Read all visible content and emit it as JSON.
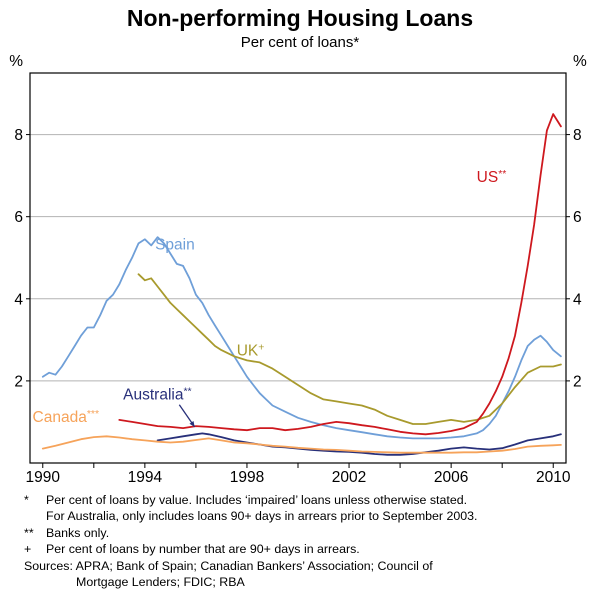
{
  "chart_data": {
    "type": "line",
    "title": "Non-performing Housing Loans",
    "subtitle": "Per cent of loans*",
    "xlim": [
      1989.5,
      2010.5
    ],
    "ylim": [
      0,
      9.5
    ],
    "x_axis": {
      "labels": [
        1990,
        1994,
        1998,
        2002,
        2006,
        2010
      ],
      "minor_ticks": [
        1990,
        1992,
        1994,
        1996,
        1998,
        2000,
        2002,
        2004,
        2006,
        2008,
        2010
      ]
    },
    "y_axis": {
      "ticks": [
        2,
        4,
        6,
        8
      ],
      "unit": "%",
      "gridlines": true
    },
    "colors": {
      "grid": "#b3b3b3",
      "frame": "#000000"
    },
    "legend_position": "inline-labels",
    "series": [
      {
        "id": "spain",
        "name": "Spain",
        "color": "#6f9fd8",
        "points": [
          [
            1990,
            2.1
          ],
          [
            1990.25,
            2.2
          ],
          [
            1990.5,
            2.15
          ],
          [
            1990.75,
            2.35
          ],
          [
            1991,
            2.6
          ],
          [
            1991.25,
            2.85
          ],
          [
            1991.5,
            3.1
          ],
          [
            1991.75,
            3.3
          ],
          [
            1992,
            3.3
          ],
          [
            1992.25,
            3.6
          ],
          [
            1992.5,
            3.95
          ],
          [
            1992.75,
            4.1
          ],
          [
            1993,
            4.35
          ],
          [
            1993.25,
            4.7
          ],
          [
            1993.5,
            5.0
          ],
          [
            1993.75,
            5.35
          ],
          [
            1994,
            5.45
          ],
          [
            1994.25,
            5.3
          ],
          [
            1994.5,
            5.5
          ],
          [
            1994.75,
            5.35
          ],
          [
            1995,
            5.1
          ],
          [
            1995.25,
            4.85
          ],
          [
            1995.5,
            4.8
          ],
          [
            1995.75,
            4.5
          ],
          [
            1996,
            4.1
          ],
          [
            1996.25,
            3.9
          ],
          [
            1996.5,
            3.6
          ],
          [
            1996.75,
            3.35
          ],
          [
            1997,
            3.1
          ],
          [
            1997.25,
            2.85
          ],
          [
            1997.5,
            2.6
          ],
          [
            1997.75,
            2.35
          ],
          [
            1998,
            2.1
          ],
          [
            1998.25,
            1.9
          ],
          [
            1998.5,
            1.7
          ],
          [
            1998.75,
            1.55
          ],
          [
            1999,
            1.4
          ],
          [
            1999.5,
            1.25
          ],
          [
            2000,
            1.1
          ],
          [
            2000.5,
            1.0
          ],
          [
            2001,
            0.92
          ],
          [
            2001.5,
            0.85
          ],
          [
            2002,
            0.8
          ],
          [
            2002.5,
            0.75
          ],
          [
            2003,
            0.7
          ],
          [
            2003.5,
            0.65
          ],
          [
            2004,
            0.62
          ],
          [
            2004.5,
            0.6
          ],
          [
            2005,
            0.6
          ],
          [
            2005.5,
            0.6
          ],
          [
            2006,
            0.62
          ],
          [
            2006.5,
            0.65
          ],
          [
            2007,
            0.72
          ],
          [
            2007.25,
            0.8
          ],
          [
            2007.5,
            0.95
          ],
          [
            2007.75,
            1.15
          ],
          [
            2008,
            1.45
          ],
          [
            2008.25,
            1.75
          ],
          [
            2008.5,
            2.1
          ],
          [
            2008.75,
            2.5
          ],
          [
            2009,
            2.85
          ],
          [
            2009.25,
            3.0
          ],
          [
            2009.5,
            3.1
          ],
          [
            2009.75,
            2.95
          ],
          [
            2010,
            2.75
          ],
          [
            2010.3,
            2.6
          ]
        ]
      },
      {
        "id": "uk",
        "name": "UK+",
        "color": "#a89a2d",
        "points": [
          [
            1993.75,
            4.6
          ],
          [
            1994,
            4.45
          ],
          [
            1994.25,
            4.5
          ],
          [
            1994.5,
            4.3
          ],
          [
            1994.75,
            4.1
          ],
          [
            1995,
            3.9
          ],
          [
            1995.25,
            3.75
          ],
          [
            1995.5,
            3.6
          ],
          [
            1995.75,
            3.45
          ],
          [
            1996,
            3.3
          ],
          [
            1996.25,
            3.15
          ],
          [
            1996.5,
            3.0
          ],
          [
            1996.75,
            2.85
          ],
          [
            1997,
            2.75
          ],
          [
            1997.5,
            2.6
          ],
          [
            1998,
            2.5
          ],
          [
            1998.5,
            2.45
          ],
          [
            1999,
            2.3
          ],
          [
            1999.5,
            2.1
          ],
          [
            2000,
            1.9
          ],
          [
            2000.5,
            1.7
          ],
          [
            2001,
            1.55
          ],
          [
            2001.5,
            1.5
          ],
          [
            2002,
            1.45
          ],
          [
            2002.5,
            1.4
          ],
          [
            2003,
            1.3
          ],
          [
            2003.5,
            1.15
          ],
          [
            2004,
            1.05
          ],
          [
            2004.5,
            0.95
          ],
          [
            2005,
            0.95
          ],
          [
            2005.5,
            1.0
          ],
          [
            2006,
            1.05
          ],
          [
            2006.5,
            1.0
          ],
          [
            2007,
            1.05
          ],
          [
            2007.5,
            1.15
          ],
          [
            2008,
            1.45
          ],
          [
            2008.5,
            1.85
          ],
          [
            2009,
            2.2
          ],
          [
            2009.5,
            2.35
          ],
          [
            2010,
            2.35
          ],
          [
            2010.3,
            2.4
          ]
        ]
      },
      {
        "id": "us",
        "name": "US**",
        "color": "#ce181e",
        "points": [
          [
            1993,
            1.05
          ],
          [
            1993.5,
            1.0
          ],
          [
            1994,
            0.95
          ],
          [
            1994.5,
            0.9
          ],
          [
            1995,
            0.88
          ],
          [
            1995.5,
            0.85
          ],
          [
            1996,
            0.9
          ],
          [
            1996.5,
            0.88
          ],
          [
            1997,
            0.85
          ],
          [
            1997.5,
            0.82
          ],
          [
            1998,
            0.8
          ],
          [
            1998.5,
            0.85
          ],
          [
            1999,
            0.85
          ],
          [
            1999.5,
            0.8
          ],
          [
            2000,
            0.83
          ],
          [
            2000.5,
            0.88
          ],
          [
            2001,
            0.95
          ],
          [
            2001.5,
            1.0
          ],
          [
            2002,
            0.97
          ],
          [
            2002.5,
            0.92
          ],
          [
            2003,
            0.88
          ],
          [
            2003.5,
            0.82
          ],
          [
            2004,
            0.76
          ],
          [
            2004.5,
            0.72
          ],
          [
            2005,
            0.7
          ],
          [
            2005.5,
            0.73
          ],
          [
            2006,
            0.78
          ],
          [
            2006.5,
            0.85
          ],
          [
            2007,
            1.0
          ],
          [
            2007.25,
            1.2
          ],
          [
            2007.5,
            1.45
          ],
          [
            2007.75,
            1.75
          ],
          [
            2008,
            2.1
          ],
          [
            2008.25,
            2.55
          ],
          [
            2008.5,
            3.1
          ],
          [
            2008.75,
            3.9
          ],
          [
            2009,
            4.8
          ],
          [
            2009.25,
            5.8
          ],
          [
            2009.5,
            7.0
          ],
          [
            2009.75,
            8.1
          ],
          [
            2010,
            8.5
          ],
          [
            2010.3,
            8.2
          ]
        ]
      },
      {
        "id": "australia",
        "name": "Australia**",
        "color": "#28307a",
        "points": [
          [
            1994.5,
            0.55
          ],
          [
            1995,
            0.6
          ],
          [
            1995.5,
            0.65
          ],
          [
            1996,
            0.7
          ],
          [
            1996.25,
            0.72
          ],
          [
            1996.5,
            0.7
          ],
          [
            1997,
            0.63
          ],
          [
            1997.5,
            0.55
          ],
          [
            1998,
            0.5
          ],
          [
            1998.5,
            0.45
          ],
          [
            1999,
            0.4
          ],
          [
            1999.5,
            0.38
          ],
          [
            2000,
            0.35
          ],
          [
            2000.5,
            0.32
          ],
          [
            2001,
            0.3
          ],
          [
            2001.5,
            0.28
          ],
          [
            2002,
            0.27
          ],
          [
            2002.5,
            0.25
          ],
          [
            2003,
            0.22
          ],
          [
            2003.5,
            0.2
          ],
          [
            2004,
            0.2
          ],
          [
            2004.5,
            0.22
          ],
          [
            2005,
            0.26
          ],
          [
            2005.5,
            0.3
          ],
          [
            2006,
            0.35
          ],
          [
            2006.5,
            0.38
          ],
          [
            2007,
            0.35
          ],
          [
            2007.5,
            0.33
          ],
          [
            2008,
            0.36
          ],
          [
            2008.5,
            0.45
          ],
          [
            2009,
            0.55
          ],
          [
            2009.5,
            0.6
          ],
          [
            2010,
            0.65
          ],
          [
            2010.3,
            0.7
          ]
        ]
      },
      {
        "id": "canada",
        "name": "Canada***",
        "color": "#f6a35a",
        "points": [
          [
            1990,
            0.35
          ],
          [
            1990.5,
            0.42
          ],
          [
            1991,
            0.5
          ],
          [
            1991.5,
            0.58
          ],
          [
            1992,
            0.63
          ],
          [
            1992.5,
            0.65
          ],
          [
            1993,
            0.62
          ],
          [
            1993.5,
            0.58
          ],
          [
            1994,
            0.55
          ],
          [
            1994.5,
            0.52
          ],
          [
            1995,
            0.5
          ],
          [
            1995.5,
            0.52
          ],
          [
            1996,
            0.56
          ],
          [
            1996.5,
            0.6
          ],
          [
            1997,
            0.55
          ],
          [
            1997.5,
            0.5
          ],
          [
            1998,
            0.48
          ],
          [
            1998.5,
            0.45
          ],
          [
            1999,
            0.42
          ],
          [
            1999.5,
            0.4
          ],
          [
            2000,
            0.37
          ],
          [
            2000.5,
            0.35
          ],
          [
            2001,
            0.33
          ],
          [
            2001.5,
            0.32
          ],
          [
            2002,
            0.3
          ],
          [
            2002.5,
            0.28
          ],
          [
            2003,
            0.27
          ],
          [
            2003.5,
            0.26
          ],
          [
            2004,
            0.25
          ],
          [
            2004.5,
            0.25
          ],
          [
            2005,
            0.25
          ],
          [
            2005.5,
            0.25
          ],
          [
            2006,
            0.25
          ],
          [
            2006.5,
            0.26
          ],
          [
            2007,
            0.26
          ],
          [
            2007.5,
            0.28
          ],
          [
            2008,
            0.3
          ],
          [
            2008.5,
            0.34
          ],
          [
            2009,
            0.4
          ],
          [
            2009.5,
            0.42
          ],
          [
            2010,
            0.43
          ],
          [
            2010.3,
            0.44
          ]
        ]
      }
    ],
    "annotations": [
      {
        "id": "spain",
        "text": "Spain",
        "sup": "",
        "x": 1994.4,
        "y": 5.2,
        "color": "#6f9fd8"
      },
      {
        "id": "uk",
        "text": "UK",
        "sup": "+",
        "x": 1997.6,
        "y": 2.62,
        "color": "#a89a2d"
      },
      {
        "id": "us",
        "text": "US",
        "sup": "**",
        "x": 2007.0,
        "y": 6.85,
        "color": "#ce181e"
      },
      {
        "id": "australia",
        "text": "Australia",
        "sup": "**",
        "x": 1993.15,
        "y": 1.55,
        "color": "#28307a",
        "arrow": {
          "x1": 1995.35,
          "y1": 1.42,
          "x2": 1995.95,
          "y2": 0.88
        }
      },
      {
        "id": "canada",
        "text": "Canada",
        "sup": "***",
        "x": 1989.6,
        "y": 1.0,
        "color": "#f6a35a"
      }
    ]
  },
  "footnotes": {
    "items": [
      {
        "marker": "*",
        "text": "Per cent of loans by value. Includes ‘impaired’ loans unless otherwise stated.",
        "text2": "For Australia, only includes loans 90+ days in arrears prior to September 2003."
      },
      {
        "marker": "**",
        "text": "Banks only."
      },
      {
        "marker": "+",
        "text": "Per cent of loans by number that are 90+ days in arrears."
      }
    ],
    "sources": "Sources: APRA; Bank of Spain; Canadian Bankers’ Association; Council of",
    "sources2": "Mortgage Lenders; FDIC; RBA"
  }
}
